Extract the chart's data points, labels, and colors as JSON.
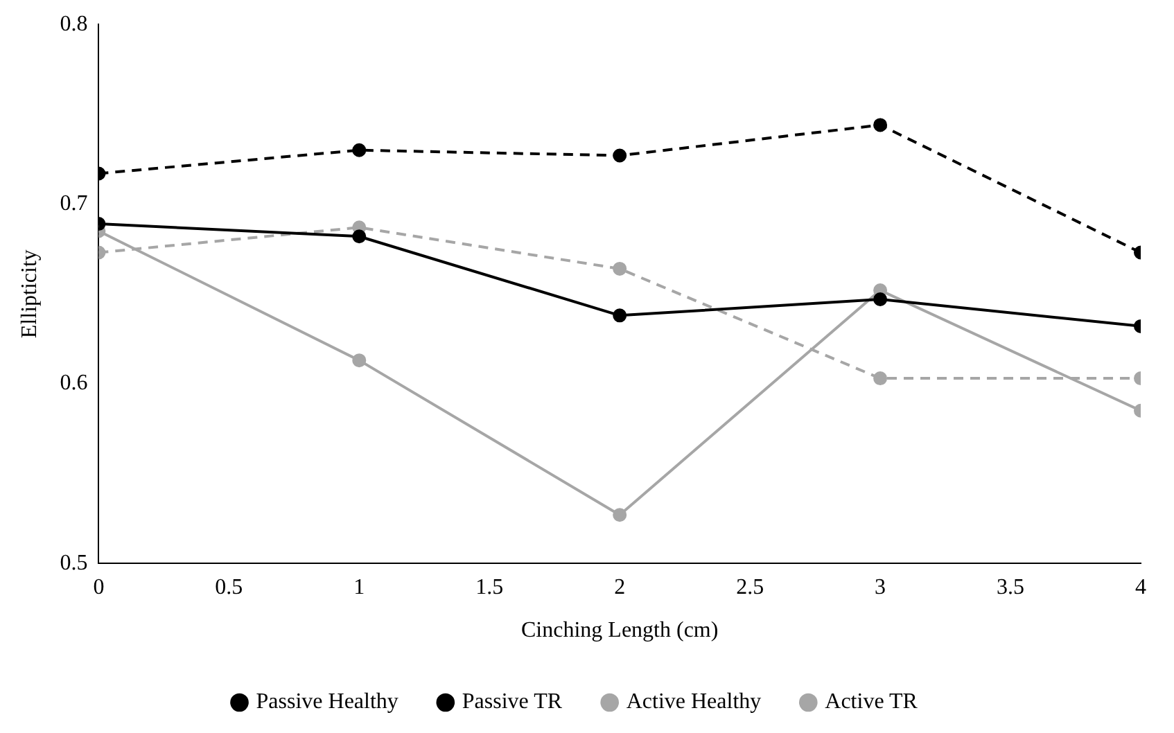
{
  "chart_data": {
    "type": "line",
    "xlabel": "Cinching Length (cm)",
    "ylabel": "Ellipticity",
    "x": [
      0,
      1,
      2,
      3,
      4
    ],
    "series": [
      {
        "name": "Passive Healthy",
        "color": "#000000",
        "line_style": "dashed",
        "values": [
          0.717,
          0.73,
          0.727,
          0.744,
          0.673
        ]
      },
      {
        "name": "Passive TR",
        "color": "#000000",
        "line_style": "solid",
        "values": [
          0.689,
          0.682,
          0.638,
          0.647,
          0.632
        ]
      },
      {
        "name": "Active Healthy",
        "color": "#a6a6a6",
        "line_style": "dashed",
        "values": [
          0.673,
          0.687,
          0.664,
          0.603,
          0.603
        ]
      },
      {
        "name": "Active TR",
        "color": "#a6a6a6",
        "line_style": "solid",
        "values": [
          0.685,
          0.613,
          0.527,
          0.652,
          0.585
        ]
      }
    ],
    "xlim": [
      0,
      4
    ],
    "xticks": [
      0,
      0.5,
      1,
      1.5,
      2,
      2.5,
      3,
      3.5,
      4
    ],
    "ylim": [
      0.5,
      0.8
    ],
    "yticks": [
      0.5,
      0.6,
      0.7,
      0.8
    ],
    "grid": false,
    "legend": "bottom",
    "marker": "circle"
  }
}
